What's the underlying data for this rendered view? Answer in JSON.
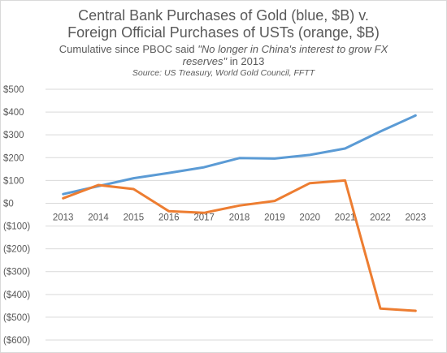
{
  "header": {
    "title_line1": "Central Bank Purchases of Gold (blue, $B) v.",
    "title_line2": "Foreign Official Purchases of USTs (orange, $B)",
    "subtitle_prefix": "Cumulative since PBOC said ",
    "subtitle_quote_a": "\"No longer in China's interest to grow FX",
    "subtitle_quote_b": "reserves\"",
    "subtitle_suffix": " in 2013",
    "source": "Source: US Treasury, World Gold Council, FFTT"
  },
  "chart_data": {
    "type": "line",
    "x": [
      "2013",
      "2014",
      "2015",
      "2016",
      "2017",
      "2018",
      "2019",
      "2020",
      "2021",
      "2022",
      "2023"
    ],
    "y_ticks": [
      "$500",
      "$400",
      "$300",
      "$200",
      "$100",
      "$0",
      "($100)",
      "($200)",
      "($300)",
      "($400)",
      "($500)",
      "($600)"
    ],
    "ylim": [
      -600,
      500
    ],
    "grid": true,
    "series": [
      {
        "color": "#5b9bd5",
        "values": [
          40,
          75,
          110,
          133,
          158,
          198,
          196,
          212,
          240,
          315,
          385
        ]
      },
      {
        "color": "#ed7d31",
        "values": [
          22,
          80,
          62,
          -35,
          -42,
          -10,
          10,
          88,
          100,
          -462,
          -472
        ]
      }
    ]
  }
}
